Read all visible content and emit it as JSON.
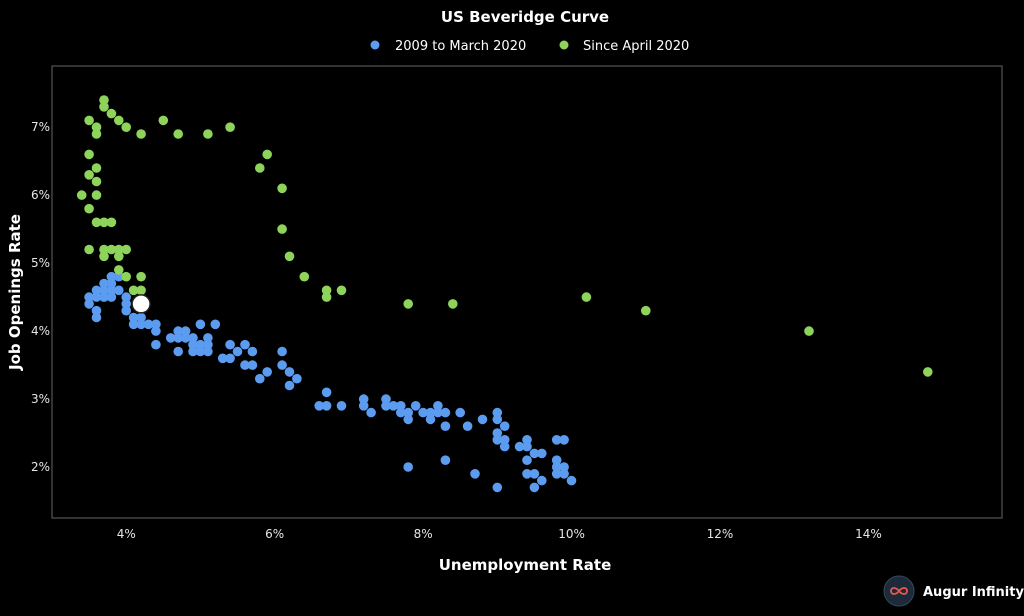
{
  "chart_data": {
    "type": "scatter",
    "title": "US Beveridge Curve",
    "xlabel": "Unemployment Rate",
    "ylabel": "Job Openings Rate",
    "xlim": [
      3.0,
      15.8
    ],
    "ylim": [
      1.25,
      7.9
    ],
    "x_ticks": [
      4,
      6,
      8,
      10,
      12,
      14
    ],
    "y_ticks": [
      2,
      3,
      4,
      5,
      6,
      7
    ],
    "x_tick_labels": [
      "4%",
      "6%",
      "8%",
      "10%",
      "12%",
      "14%"
    ],
    "y_tick_labels": [
      "2%",
      "3%",
      "4%",
      "5%",
      "6%",
      "7%"
    ],
    "grid": false,
    "legend_position": "top-center",
    "series": [
      {
        "name": "2009 to March 2020",
        "color": "#5b9cf0",
        "points": [
          [
            3.5,
            4.5
          ],
          [
            3.5,
            4.4
          ],
          [
            3.6,
            4.6
          ],
          [
            3.6,
            4.5
          ],
          [
            3.6,
            4.3
          ],
          [
            3.6,
            4.2
          ],
          [
            3.7,
            4.7
          ],
          [
            3.7,
            4.6
          ],
          [
            3.7,
            4.5
          ],
          [
            3.8,
            4.8
          ],
          [
            3.8,
            4.7
          ],
          [
            3.8,
            4.6
          ],
          [
            3.8,
            4.5
          ],
          [
            3.9,
            4.8
          ],
          [
            3.9,
            4.6
          ],
          [
            4.0,
            4.5
          ],
          [
            4.0,
            4.4
          ],
          [
            4.0,
            4.3
          ],
          [
            4.1,
            4.2
          ],
          [
            4.1,
            4.1
          ],
          [
            4.2,
            4.2
          ],
          [
            4.2,
            4.1
          ],
          [
            4.3,
            4.1
          ],
          [
            4.4,
            4.1
          ],
          [
            4.4,
            4.0
          ],
          [
            4.4,
            3.8
          ],
          [
            4.6,
            3.9
          ],
          [
            4.7,
            4.0
          ],
          [
            4.7,
            3.9
          ],
          [
            4.7,
            3.7
          ],
          [
            4.8,
            4.0
          ],
          [
            4.8,
            3.9
          ],
          [
            4.9,
            3.9
          ],
          [
            4.9,
            3.8
          ],
          [
            4.9,
            3.7
          ],
          [
            5.0,
            4.1
          ],
          [
            5.0,
            3.8
          ],
          [
            5.0,
            3.7
          ],
          [
            5.1,
            3.9
          ],
          [
            5.1,
            3.8
          ],
          [
            5.1,
            3.7
          ],
          [
            5.2,
            4.1
          ],
          [
            5.3,
            3.6
          ],
          [
            5.4,
            3.8
          ],
          [
            5.4,
            3.6
          ],
          [
            5.5,
            3.7
          ],
          [
            5.6,
            3.8
          ],
          [
            5.6,
            3.5
          ],
          [
            5.7,
            3.7
          ],
          [
            5.7,
            3.5
          ],
          [
            5.8,
            3.3
          ],
          [
            5.9,
            3.4
          ],
          [
            6.1,
            3.7
          ],
          [
            6.1,
            3.5
          ],
          [
            6.2,
            3.4
          ],
          [
            6.2,
            3.2
          ],
          [
            6.3,
            3.3
          ],
          [
            6.6,
            2.9
          ],
          [
            6.7,
            3.1
          ],
          [
            6.7,
            2.9
          ],
          [
            6.9,
            2.9
          ],
          [
            7.2,
            3.0
          ],
          [
            7.2,
            2.9
          ],
          [
            7.3,
            2.8
          ],
          [
            7.5,
            3.0
          ],
          [
            7.5,
            2.9
          ],
          [
            7.6,
            2.9
          ],
          [
            7.7,
            2.8
          ],
          [
            7.7,
            2.9
          ],
          [
            7.8,
            2.8
          ],
          [
            7.8,
            2.7
          ],
          [
            7.9,
            2.9
          ],
          [
            8.0,
            2.8
          ],
          [
            8.1,
            2.8
          ],
          [
            8.1,
            2.7
          ],
          [
            8.2,
            2.9
          ],
          [
            8.2,
            2.8
          ],
          [
            8.3,
            2.8
          ],
          [
            8.3,
            2.6
          ],
          [
            8.5,
            2.8
          ],
          [
            8.6,
            2.6
          ],
          [
            8.8,
            2.7
          ],
          [
            9.0,
            2.8
          ],
          [
            9.0,
            2.7
          ],
          [
            9.0,
            2.5
          ],
          [
            9.0,
            2.4
          ],
          [
            9.1,
            2.6
          ],
          [
            9.1,
            2.4
          ],
          [
            9.1,
            2.3
          ],
          [
            9.3,
            2.3
          ],
          [
            9.4,
            2.3
          ],
          [
            9.4,
            2.1
          ],
          [
            9.4,
            1.9
          ],
          [
            9.5,
            2.2
          ],
          [
            9.5,
            1.9
          ],
          [
            9.6,
            2.2
          ],
          [
            9.6,
            1.8
          ],
          [
            9.8,
            2.4
          ],
          [
            9.8,
            2.1
          ],
          [
            9.8,
            2.0
          ],
          [
            9.8,
            1.9
          ],
          [
            9.9,
            2.4
          ],
          [
            9.9,
            2.0
          ],
          [
            9.9,
            1.9
          ],
          [
            10.0,
            1.8
          ],
          [
            7.8,
            2.0
          ],
          [
            8.3,
            2.1
          ],
          [
            8.7,
            1.9
          ],
          [
            9.0,
            1.7
          ],
          [
            9.5,
            1.7
          ],
          [
            9.4,
            2.4
          ]
        ]
      },
      {
        "name": "Since April 2020",
        "color": "#8fd45a",
        "points": [
          [
            3.4,
            6.0
          ],
          [
            3.5,
            7.1
          ],
          [
            3.5,
            6.6
          ],
          [
            3.5,
            6.3
          ],
          [
            3.5,
            5.8
          ],
          [
            3.5,
            5.2
          ],
          [
            3.6,
            7.0
          ],
          [
            3.6,
            6.9
          ],
          [
            3.6,
            6.4
          ],
          [
            3.6,
            6.2
          ],
          [
            3.6,
            6.0
          ],
          [
            3.6,
            5.6
          ],
          [
            3.7,
            7.4
          ],
          [
            3.7,
            7.3
          ],
          [
            3.7,
            5.6
          ],
          [
            3.7,
            5.2
          ],
          [
            3.7,
            5.1
          ],
          [
            3.8,
            7.2
          ],
          [
            3.8,
            5.6
          ],
          [
            3.8,
            5.2
          ],
          [
            3.9,
            7.1
          ],
          [
            3.9,
            5.2
          ],
          [
            3.9,
            5.1
          ],
          [
            3.9,
            4.9
          ],
          [
            4.0,
            7.0
          ],
          [
            4.0,
            5.2
          ],
          [
            4.0,
            4.8
          ],
          [
            4.1,
            4.6
          ],
          [
            4.2,
            6.9
          ],
          [
            4.2,
            4.8
          ],
          [
            4.2,
            4.6
          ],
          [
            4.5,
            7.1
          ],
          [
            4.7,
            6.9
          ],
          [
            5.1,
            6.9
          ],
          [
            5.4,
            7.0
          ],
          [
            5.8,
            6.4
          ],
          [
            5.9,
            6.6
          ],
          [
            6.1,
            6.1
          ],
          [
            6.1,
            5.5
          ],
          [
            6.2,
            5.1
          ],
          [
            6.4,
            4.8
          ],
          [
            6.7,
            4.6
          ],
          [
            6.7,
            4.5
          ],
          [
            6.9,
            4.6
          ],
          [
            7.8,
            4.4
          ],
          [
            8.4,
            4.4
          ],
          [
            10.2,
            4.5
          ],
          [
            11.0,
            4.3
          ],
          [
            13.2,
            4.0
          ],
          [
            14.8,
            3.4
          ]
        ]
      }
    ],
    "highlight_point": [
      4.2,
      4.4
    ]
  },
  "brand": {
    "name": "Augur Infinity",
    "logo_icon": "infinity-logo-icon"
  },
  "colors": {
    "background": "#000000",
    "axes_border": "#666666",
    "highlight_fill": "#ffffff",
    "highlight_stroke": "#222222"
  }
}
